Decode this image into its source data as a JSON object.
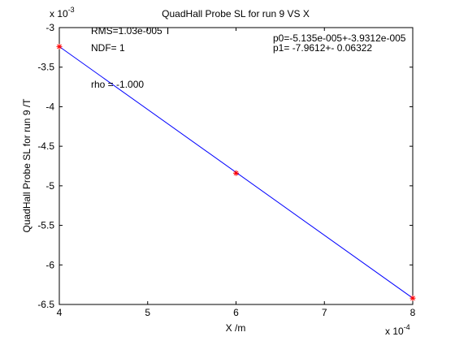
{
  "chart_data": {
    "type": "line",
    "title": "QuadHall Probe SL for run 9 VS X",
    "xlabel": "X /m",
    "ylabel": "QuadHall Probe SL for run 9 /T",
    "x_multiplier_label": "x 10",
    "x_multiplier_exponent": "-4",
    "y_multiplier_label": "x 10",
    "y_multiplier_exponent": "-3",
    "xlim": [
      4,
      8
    ],
    "ylim": [
      -6.5,
      -3
    ],
    "x_ticks": [
      "4",
      "5",
      "6",
      "7",
      "8"
    ],
    "y_ticks": [
      "-3",
      "-3.5",
      "-4",
      "-4.5",
      "-5",
      "-5.5",
      "-6",
      "-6.5"
    ],
    "x_tick_values": [
      4,
      5,
      6,
      7,
      8
    ],
    "y_tick_values": [
      -3,
      -3.5,
      -4,
      -4.5,
      -5,
      -5.5,
      -6,
      -6.5
    ],
    "series": [
      {
        "style": "line",
        "color": "#0000ff",
        "x": [
          4,
          8
        ],
        "y": [
          -3.24,
          -6.42
        ]
      },
      {
        "style": "markers",
        "marker": "*",
        "color": "#ff0000",
        "x": [
          4,
          6,
          8
        ],
        "y": [
          -3.24,
          -4.84,
          -6.42
        ]
      }
    ],
    "annotations": {
      "rms": "RMS=1.03e-005 T",
      "ndf": "NDF=    1",
      "rho": "rho      = -1.000",
      "p0": "p0=-5.135e-005+-3.9312e-005",
      "p1": "p1=  -7.9612+-  0.06322"
    },
    "grid": false,
    "legend": "none"
  }
}
